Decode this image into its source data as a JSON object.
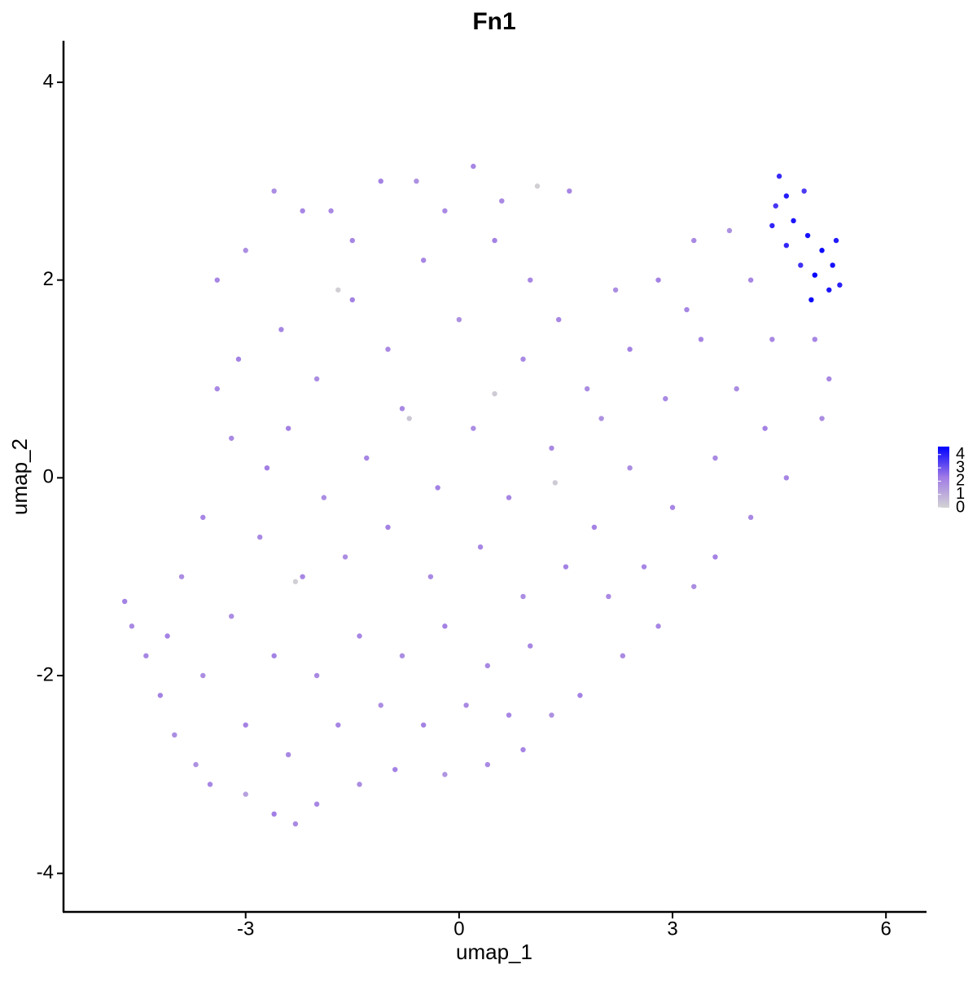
{
  "chart_data": {
    "type": "scatter",
    "title": "Fn1",
    "x_label": "umap_1",
    "y_label": "umap_2",
    "xlim": [
      -5.56,
      6.57
    ],
    "ylim": [
      -4.39,
      4.42
    ],
    "xticks": [
      -3,
      0,
      3,
      6
    ],
    "yticks": [
      -4,
      -2,
      0,
      2,
      4
    ],
    "colorlim": [
      0,
      4.6
    ],
    "colorticks": [
      0,
      1,
      2,
      3,
      4
    ],
    "colors": [
      "#d3d3d3",
      "#a07ae6",
      "#0000ff"
    ],
    "x": [
      4.5,
      4.6,
      4.7,
      4.4,
      4.9,
      5.1,
      5.3,
      5.0,
      5.2,
      4.95,
      4.8,
      4.6,
      5.35,
      5.25,
      4.85,
      4.45,
      -4.7,
      -4.6,
      -4.4,
      -4.2,
      -4.0,
      -3.7,
      -3.5,
      -3.0,
      -2.6,
      -2.3,
      -2.0,
      -1.4,
      -0.9,
      -0.2,
      0.4,
      0.9,
      1.3,
      1.7,
      2.3,
      2.8,
      3.3,
      3.6,
      4.1,
      4.6,
      5.1,
      5.2,
      5.0,
      -2.6,
      -2.2,
      -1.8,
      -1.1,
      -0.6,
      0.2,
      0.6,
      1.1,
      1.55,
      2.2,
      2.8,
      3.3,
      3.8,
      4.1,
      4.4,
      -3.4,
      -3.0,
      -3.1,
      -3.2,
      -3.6,
      -3.9,
      -4.1,
      -2.5,
      -2.0,
      -1.5,
      -1.0,
      -0.5,
      0.0,
      0.5,
      0.9,
      1.4,
      1.8,
      2.4,
      2.9,
      3.4,
      3.9,
      4.3,
      3.6,
      3.0,
      2.4,
      1.9,
      1.3,
      0.7,
      0.2,
      -0.3,
      -0.8,
      -1.3,
      -1.9,
      -2.4,
      -2.8,
      -2.2,
      -1.6,
      -1.0,
      -0.4,
      0.3,
      0.9,
      1.5,
      2.1,
      2.6,
      -3.2,
      -2.6,
      -2.0,
      -1.4,
      -0.8,
      -0.2,
      0.4,
      1.0,
      -3.6,
      -3.0,
      -2.4,
      -1.7,
      -1.1,
      -0.5,
      0.1,
      0.7,
      -1.7,
      0.5,
      -2.3,
      1.35,
      -0.7,
      -1.5,
      -0.2,
      2.0,
      3.2,
      -3.4,
      -2.7,
      1.0
    ],
    "y": [
      3.05,
      2.85,
      2.6,
      2.55,
      2.45,
      2.3,
      2.4,
      2.05,
      1.9,
      1.8,
      2.15,
      2.35,
      1.95,
      2.15,
      2.9,
      2.75,
      -1.25,
      -1.5,
      -1.8,
      -2.2,
      -2.6,
      -2.9,
      -3.1,
      -3.2,
      -3.4,
      -3.5,
      -3.3,
      -3.1,
      -2.95,
      -3.0,
      -2.9,
      -2.75,
      -2.4,
      -2.2,
      -1.8,
      -1.5,
      -1.1,
      -0.8,
      -0.4,
      0.0,
      0.6,
      1.0,
      1.4,
      2.9,
      2.7,
      2.7,
      3.0,
      3.0,
      3.15,
      2.8,
      2.95,
      2.9,
      1.9,
      2.0,
      2.4,
      2.5,
      2.0,
      1.4,
      2.0,
      2.3,
      1.2,
      0.4,
      -0.4,
      -1.0,
      -1.6,
      1.5,
      1.0,
      1.8,
      1.3,
      2.2,
      1.6,
      2.4,
      1.2,
      1.6,
      0.9,
      1.3,
      0.8,
      1.4,
      0.9,
      0.5,
      0.2,
      -0.3,
      0.1,
      -0.5,
      0.3,
      -0.2,
      0.5,
      -0.1,
      0.7,
      0.2,
      -0.2,
      0.5,
      -0.6,
      -1.0,
      -0.8,
      -0.5,
      -1.0,
      -0.7,
      -1.2,
      -0.9,
      -1.2,
      -0.9,
      -1.4,
      -1.8,
      -2.0,
      -1.6,
      -1.8,
      -1.5,
      -1.9,
      -1.7,
      -2.0,
      -2.5,
      -2.8,
      -2.5,
      -2.3,
      -2.5,
      -2.3,
      -2.4,
      1.9,
      0.85,
      -1.05,
      -0.05,
      0.6,
      2.4,
      2.7,
      0.6,
      1.7,
      0.9,
      0.1,
      2.0
    ],
    "values": [
      3.8,
      4.1,
      4.2,
      3.9,
      4.3,
      4.4,
      4.1,
      4.5,
      4.2,
      4.4,
      3.7,
      3.9,
      4.0,
      4.3,
      3.5,
      3.6,
      2.1,
      1.9,
      2.0,
      2.1,
      1.8,
      1.7,
      2.0,
      1.3,
      2.2,
      1.9,
      2.0,
      1.8,
      2.1,
      1.6,
      1.9,
      2.0,
      1.7,
      2.1,
      1.9,
      2.0,
      1.8,
      2.1,
      1.9,
      2.0,
      1.8,
      1.9,
      2.0,
      1.8,
      2.0,
      1.9,
      2.1,
      1.7,
      2.0,
      1.9,
      0.1,
      2.0,
      1.8,
      2.1,
      1.9,
      1.7,
      2.0,
      1.9,
      2.0,
      1.8,
      2.1,
      1.9,
      2.0,
      1.8,
      2.1,
      2.0,
      1.8,
      2.1,
      1.9,
      2.0,
      1.7,
      2.1,
      1.9,
      2.0,
      1.8,
      2.1,
      1.9,
      2.0,
      1.8,
      2.1,
      1.9,
      2.0,
      1.8,
      2.1,
      1.9,
      2.0,
      1.8,
      2.1,
      1.9,
      2.0,
      1.8,
      2.1,
      1.9,
      2.0,
      1.8,
      2.1,
      1.9,
      2.0,
      1.8,
      2.1,
      1.9,
      2.0,
      1.8,
      2.1,
      1.9,
      2.0,
      1.8,
      2.1,
      1.9,
      2.0,
      1.8,
      2.1,
      1.9,
      2.0,
      1.8,
      2.1,
      1.9,
      2.0,
      0.1,
      0.2,
      0.1,
      0.2,
      0.3,
      2.0,
      1.9,
      1.7,
      2.0,
      1.9,
      2.2,
      2.0
    ]
  }
}
